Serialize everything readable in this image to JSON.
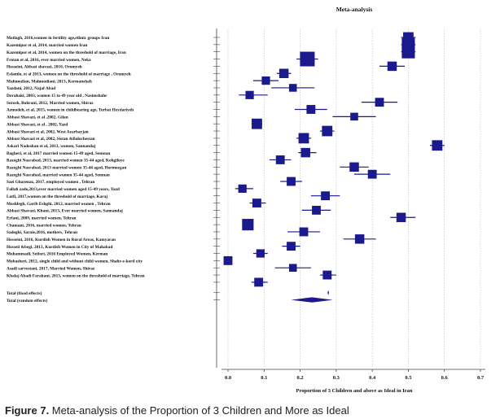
{
  "chart_data": {
    "type": "forest",
    "title": "Meta-analysis",
    "xlabel": "Proportion of 3 Children and above as Ideal in Iran",
    "xlim": [
      0,
      0.7
    ],
    "xticks": [
      "0.0",
      "0.1",
      "0.2",
      "0.3",
      "0.4",
      "0.5",
      "0.6",
      "0.7"
    ],
    "grid": true,
    "studies": [
      {
        "label": "Motlagh, 2016,women in fertility age,ethnic groups  Iran",
        "est": 0.5,
        "lo": 0.48,
        "hi": 0.52,
        "weight": 0.6
      },
      {
        "label": "Kazemipor et al, 2014,  married women Iran",
        "est": 0.5,
        "lo": 0.48,
        "hi": 0.52,
        "weight": 0.85
      },
      {
        "label": "Kazemipor et al, 2014,  women on the threshold of marriage, Iran",
        "est": 0.5,
        "lo": 0.48,
        "hi": 0.52,
        "weight": 0.85
      },
      {
        "label": "Frotan et al, 2016, ever married women, Neka",
        "est": 0.22,
        "lo": 0.19,
        "hi": 0.25,
        "weight": 1.0
      },
      {
        "label": "Hosseini, Abbasi shavazi, 2010, Oromyeh",
        "est": 0.455,
        "lo": 0.42,
        "hi": 0.49,
        "weight": 0.5
      },
      {
        "label": "Eslamlo, et al 2013, women on the threshold of marriage , Oromyeh",
        "est": 0.155,
        "lo": 0.135,
        "hi": 0.175,
        "weight": 0.5
      },
      {
        "label": "Mahmodian, Mahmodiani, 2013, Kermanshah",
        "est": 0.105,
        "lo": 0.07,
        "hi": 0.14,
        "weight": 0.4
      },
      {
        "label": "Yazdani, 2012, Najaf Abad",
        "est": 0.18,
        "lo": 0.12,
        "hi": 0.24,
        "weight": 0.35
      },
      {
        "label": "Dorahaki, 2003, women 15 to 49 year old , Nasimshahr",
        "est": 0.06,
        "lo": 0.03,
        "hi": 0.11,
        "weight": 0.4
      },
      {
        "label": "Sorosh, Bohrani, 2012, Married women, Shiraz",
        "est": 0.42,
        "lo": 0.37,
        "hi": 0.47,
        "weight": 0.45
      },
      {
        "label": "Azmodeh, et al,  2015, women in childbearing age, Torbat Heydariyeh",
        "est": 0.23,
        "lo": 0.185,
        "hi": 0.275,
        "weight": 0.45
      },
      {
        "label": "Abbasi Shavazi, et al ,2002, Gilan",
        "est": 0.35,
        "lo": 0.29,
        "hi": 0.41,
        "weight": 0.35
      },
      {
        "label": "Abbasi Shavazi, et al , 2002, Yazd",
        "est": 0.08,
        "lo": 0.065,
        "hi": 0.095,
        "weight": 0.6
      },
      {
        "label": "Abbasi Shavazi et al, 2002, West Azarbayjan",
        "est": 0.275,
        "lo": 0.255,
        "hi": 0.295,
        "weight": 0.6
      },
      {
        "label": "Abbasi Shavazi et al, 2002, Sistan &Balochestan",
        "est": 0.21,
        "lo": 0.19,
        "hi": 0.23,
        "weight": 0.6
      },
      {
        "label": "Askari Nadoshan et al, 2013, women, Sannandaj",
        "est": 0.58,
        "lo": 0.56,
        "hi": 0.6,
        "weight": 0.6
      },
      {
        "label": "Bagheri, et al, 2017 married women 15-49 aged, Semnan",
        "est": 0.215,
        "lo": 0.195,
        "hi": 0.245,
        "weight": 0.5
      },
      {
        "label": "Razeghi Nasrabad, 2013,  married women 35-44 aged, Kohgiloye",
        "est": 0.145,
        "lo": 0.115,
        "hi": 0.175,
        "weight": 0.45
      },
      {
        "label": "Razeghi Nasrabad, 2013 married women 35-44 aged, Hormozgan",
        "est": 0.35,
        "lo": 0.31,
        "hi": 0.39,
        "weight": 0.5
      },
      {
        "label": "Razeghi Nasrabad,  married women 35-44 aged, Semnan",
        "est": 0.4,
        "lo": 0.35,
        "hi": 0.45,
        "weight": 0.45
      },
      {
        "label": "Saei Gharenaz, 2017, employed women , Tehran",
        "est": 0.175,
        "lo": 0.145,
        "hi": 0.205,
        "weight": 0.45
      },
      {
        "label": "Fallah zade,2013,ever married women aged 15-49 years, Yazd",
        "est": 0.04,
        "lo": 0.02,
        "hi": 0.07,
        "weight": 0.4
      },
      {
        "label": "Lotfi, 2017,women on the threshold of marriage, Karaj",
        "est": 0.27,
        "lo": 0.23,
        "hi": 0.31,
        "weight": 0.45
      },
      {
        "label": "Moshfegh, Garib Eshghi, 2012, married women , Tehran",
        "est": 0.08,
        "lo": 0.06,
        "hi": 0.105,
        "weight": 0.45
      },
      {
        "label": "Abbasi Shavazi, Khani, 2013, Ever married women, Sannandaj",
        "est": 0.245,
        "lo": 0.205,
        "hi": 0.285,
        "weight": 0.45
      },
      {
        "label": "Erfani, 2009, married women, Tehran",
        "est": 0.48,
        "lo": 0.45,
        "hi": 0.52,
        "weight": 0.5
      },
      {
        "label": "Chamani, 2016, married women, Tehran",
        "est": 0.055,
        "lo": 0.04,
        "hi": 0.07,
        "weight": 0.7
      },
      {
        "label": "Sadeghi, Saraie,2016, mothers, Tehran",
        "est": 0.21,
        "lo": 0.165,
        "hi": 0.255,
        "weight": 0.45
      },
      {
        "label": "Hosseini, 2016, Kurdish Women in Rural Areas, Kamyaran",
        "est": 0.365,
        "lo": 0.32,
        "hi": 0.41,
        "weight": 0.5
      },
      {
        "label": "Hosseii &begi, 2013, Kurdish Women in City of Mahabad",
        "est": 0.175,
        "lo": 0.15,
        "hi": 0.2,
        "weight": 0.45
      },
      {
        "label": "Mohammadi, Seifori, 2016 Employed Women, Kerman",
        "est": 0.09,
        "lo": 0.07,
        "hi": 0.11,
        "weight": 0.4
      },
      {
        "label": "Mobasheri, 2012,  single child and without child women, Shahr-e-kord city",
        "est": 0.0,
        "lo": 0.0,
        "hi": 0.01,
        "weight": 0.45
      },
      {
        "label": "Asadi sarvestani, 2017, Married Women, Shiraz",
        "est": 0.18,
        "lo": 0.13,
        "hi": 0.23,
        "weight": 0.35
      },
      {
        "label": "Khalaj Abadi Farahani, 2013,  women on the threshold of marriage, Tehran",
        "est": 0.275,
        "lo": 0.255,
        "hi": 0.3,
        "weight": 0.45
      },
      {
        "label": "",
        "est": 0.085,
        "lo": 0.065,
        "hi": 0.11,
        "weight": 0.45
      }
    ],
    "pooled": [
      {
        "label": "Total (fixed effects)",
        "est": 0.278,
        "lo": 0.276,
        "hi": 0.28
      },
      {
        "label": "Total (random effects)",
        "est": 0.233,
        "lo": 0.175,
        "hi": 0.29
      }
    ]
  },
  "caption": {
    "figure_label": "Figure 7.",
    "text": " Meta-analysis of the Proportion of 3 Children and More as Ideal"
  }
}
